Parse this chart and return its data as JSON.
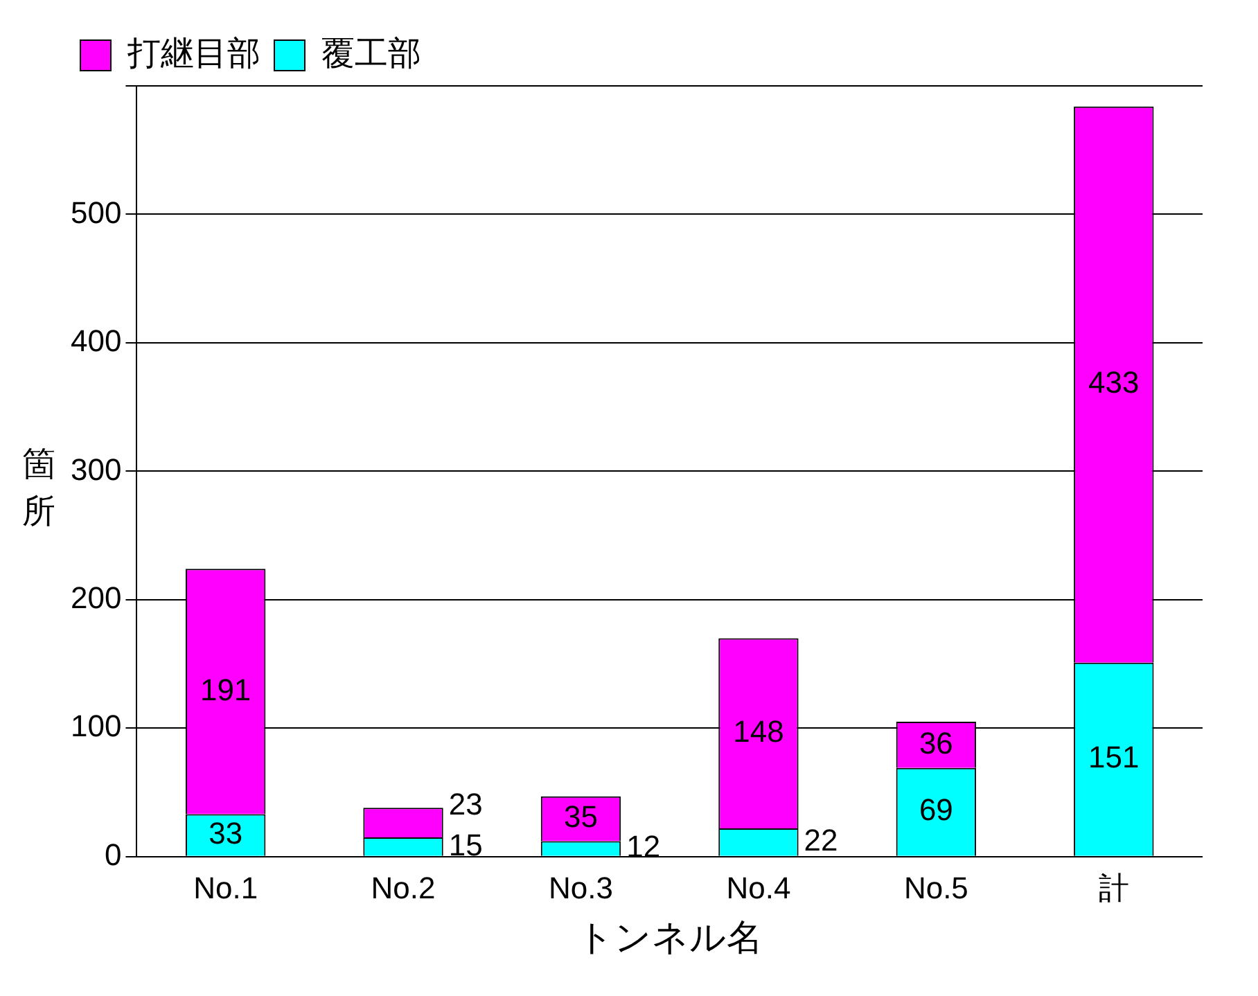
{
  "chart_data": {
    "type": "bar",
    "xlabel": "トンネル名",
    "ylabel": "箇所",
    "categories": [
      "No.1",
      "No.2",
      "No.3",
      "No.4",
      "No.5",
      "計"
    ],
    "stacked": true,
    "series": [
      {
        "name": "覆工部",
        "color": "#00ffff",
        "values": [
          33,
          15,
          12,
          22,
          69,
          151
        ]
      },
      {
        "name": "打継目部",
        "color": "#ff00ff",
        "values": [
          191,
          23,
          35,
          148,
          36,
          433
        ]
      }
    ],
    "ylim": [
      0,
      600
    ],
    "yticks": [
      0,
      100,
      200,
      300,
      400,
      500,
      {
        "value": 600,
        "label": null
      }
    ],
    "grid": "y",
    "legend": "top left",
    "data_labels": true
  }
}
